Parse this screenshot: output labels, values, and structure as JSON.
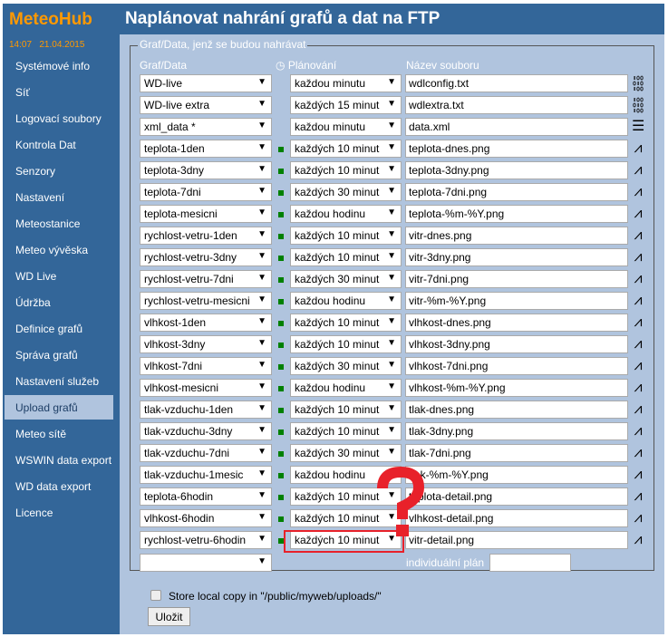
{
  "app": {
    "logo": "MeteoHub",
    "title": "Naplánovat nahrání grafů a dat na FTP",
    "clock": "14:07   21.04.2015"
  },
  "sidebar": {
    "active": "Upload grafů",
    "items": [
      "Systémové info",
      "Síť",
      "Logovací soubory",
      "Kontrola Dat",
      "Senzory",
      "Nastavení",
      "Meteostanice",
      "Meteo vývěska",
      "WD Live",
      "Údržba",
      "Definice grafů",
      "Správa grafů",
      "Nastavení služeb",
      "Upload grafů",
      "Meteo sítě",
      "WSWIN data export",
      "WD data export",
      "Licence"
    ]
  },
  "form": {
    "legend": "Graf/Data, jenž se budou nahrávat",
    "col_graph": "Graf/Data",
    "col_schedule": "Plánování",
    "col_file": "Název souboru",
    "rows": [
      {
        "graph": "WD-live",
        "schedule": "každou minutu",
        "file": "wdlconfig.txt",
        "icon": "binary-icon",
        "active": false
      },
      {
        "graph": "WD-live extra",
        "schedule": "každých 15 minut",
        "file": "wdlextra.txt",
        "icon": "binary-icon",
        "active": false
      },
      {
        "graph": "xml_data *",
        "schedule": "každou minutu",
        "file": "data.xml",
        "icon": "document-icon",
        "active": false
      },
      {
        "graph": "teplota-1den",
        "schedule": "každých 10 minut",
        "file": "teplota-dnes.png",
        "icon": "chart-icon",
        "active": true
      },
      {
        "graph": "teplota-3dny",
        "schedule": "každých 10 minut",
        "file": "teplota-3dny.png",
        "icon": "chart-icon",
        "active": true
      },
      {
        "graph": "teplota-7dni",
        "schedule": "každých 30 minut",
        "file": "teplota-7dni.png",
        "icon": "chart-icon",
        "active": true
      },
      {
        "graph": "teplota-mesicni",
        "schedule": "každou hodinu",
        "file": "teplota-%m-%Y.png",
        "icon": "chart-icon",
        "active": true
      },
      {
        "graph": "rychlost-vetru-1den",
        "schedule": "každých 10 minut",
        "file": "vitr-dnes.png",
        "icon": "chart-icon",
        "active": true
      },
      {
        "graph": "rychlost-vetru-3dny",
        "schedule": "každých 10 minut",
        "file": "vitr-3dny.png",
        "icon": "chart-icon",
        "active": true
      },
      {
        "graph": "rychlost-vetru-7dni",
        "schedule": "každých 30 minut",
        "file": "vitr-7dni.png",
        "icon": "chart-icon",
        "active": true
      },
      {
        "graph": "rychlost-vetru-mesicni",
        "schedule": "každou hodinu",
        "file": "vitr-%m-%Y.png",
        "icon": "chart-icon",
        "active": true
      },
      {
        "graph": "vlhkost-1den",
        "schedule": "každých 10 minut",
        "file": "vlhkost-dnes.png",
        "icon": "chart-icon",
        "active": true
      },
      {
        "graph": "vlhkost-3dny",
        "schedule": "každých 10 minut",
        "file": "vlhkost-3dny.png",
        "icon": "chart-icon",
        "active": true
      },
      {
        "graph": "vlhkost-7dni",
        "schedule": "každých 30 minut",
        "file": "vlhkost-7dni.png",
        "icon": "chart-icon",
        "active": true
      },
      {
        "graph": "vlhkost-mesicni",
        "schedule": "každou hodinu",
        "file": "vlhkost-%m-%Y.png",
        "icon": "chart-icon",
        "active": true
      },
      {
        "graph": "tlak-vzduchu-1den",
        "schedule": "každých 10 minut",
        "file": "tlak-dnes.png",
        "icon": "chart-icon",
        "active": true
      },
      {
        "graph": "tlak-vzduchu-3dny",
        "schedule": "každých 10 minut",
        "file": "tlak-3dny.png",
        "icon": "chart-icon",
        "active": true
      },
      {
        "graph": "tlak-vzduchu-7dni",
        "schedule": "každých 30 minut",
        "file": "tlak-7dni.png",
        "icon": "chart-icon",
        "active": true
      },
      {
        "graph": "tlak-vzduchu-1mesic",
        "schedule": "každou hodinu",
        "file": "tlak-%m-%Y.png",
        "icon": "chart-icon",
        "active": true
      },
      {
        "graph": "teplota-6hodin",
        "schedule": "každých 10 minut",
        "file": "teplota-detail.png",
        "icon": "chart-icon",
        "active": true
      },
      {
        "graph": "vlhkost-6hodin",
        "schedule": "každých 10 minut",
        "file": "vlhkost-detail.png",
        "icon": "chart-icon",
        "active": true
      },
      {
        "graph": "rychlost-vetru-6hodin",
        "schedule": "každých 10 minut",
        "file": "vitr-detail.png",
        "icon": "chart-icon",
        "active": true
      }
    ],
    "new_row_graph": "",
    "individual_plan_label": "individuální plán",
    "individual_plan_value": "",
    "store_local_label": "Store local copy in \"/public/myweb/uploads/\"",
    "store_local_checked": false,
    "save_label": "Uložit"
  },
  "annotation": {
    "symbol": "?",
    "color": "#e8212a"
  },
  "colors": {
    "sidebar": "#336699",
    "content": "#b0c4de",
    "logo": "#ff9900",
    "status_active": "#008000"
  }
}
